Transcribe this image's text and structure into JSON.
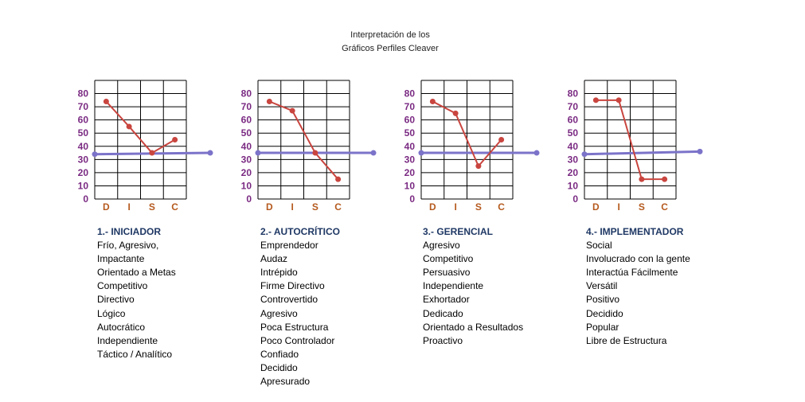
{
  "title": [
    "Interpretación de los",
    "Gráficos Perfiles Cleaver"
  ],
  "chart_data": [
    {
      "type": "line",
      "title": "1.- INICIADOR",
      "categories": [
        "D",
        "I",
        "S",
        "C"
      ],
      "yticks": [
        0,
        10,
        20,
        30,
        40,
        50,
        60,
        70,
        80
      ],
      "ylim": [
        0,
        80
      ],
      "series": [
        {
          "values": [
            74,
            55,
            35,
            45
          ]
        }
      ],
      "reference_line": [
        34,
        35
      ],
      "traits": [
        "Frío, Agresivo,",
        "Impactante",
        "Orientado a Metas",
        "Competitivo",
        "Directivo",
        "Lógico",
        "Autocrático",
        "Independiente",
        "Táctico / Analítico"
      ]
    },
    {
      "type": "line",
      "title": "2.- AUTOCRÍTICO",
      "categories": [
        "D",
        "I",
        "S",
        "C"
      ],
      "yticks": [
        0,
        10,
        20,
        30,
        40,
        50,
        60,
        70,
        80
      ],
      "ylim": [
        0,
        80
      ],
      "series": [
        {
          "values": [
            74,
            67,
            35,
            15
          ]
        }
      ],
      "reference_line": [
        35,
        35
      ],
      "traits": [
        "Emprendedor",
        "Audaz",
        "Intrépido",
        "Firme Directivo",
        "Controvertido",
        "Agresivo",
        "Poca Estructura",
        "Poco Controlador",
        "Confiado",
        "Decidido",
        "Apresurado"
      ]
    },
    {
      "type": "line",
      "title": "3.- GERENCIAL",
      "categories": [
        "D",
        "I",
        "S",
        "C"
      ],
      "yticks": [
        0,
        10,
        20,
        30,
        40,
        50,
        60,
        70,
        80
      ],
      "ylim": [
        0,
        80
      ],
      "series": [
        {
          "values": [
            74,
            65,
            25,
            45
          ]
        }
      ],
      "reference_line": [
        35,
        35
      ],
      "traits": [
        "Agresivo",
        "Competitivo",
        "Persuasivo",
        "Independiente",
        "Exhortador",
        "Dedicado",
        "Orientado a Resultados",
        "Proactivo"
      ]
    },
    {
      "type": "line",
      "title": "4.- IMPLEMENTADOR",
      "categories": [
        "D",
        "I",
        "S",
        "C"
      ],
      "yticks": [
        0,
        10,
        20,
        30,
        40,
        50,
        60,
        70,
        80
      ],
      "ylim": [
        0,
        80
      ],
      "series": [
        {
          "values": [
            75,
            75,
            15,
            15
          ]
        }
      ],
      "reference_line": [
        34,
        36
      ],
      "traits": [
        "Social",
        "Involucrado con la gente",
        "Interactúa Fácilmente",
        "Versátil",
        "Positivo",
        "Decidido",
        "Popular",
        "Libre de Estructura"
      ]
    }
  ]
}
